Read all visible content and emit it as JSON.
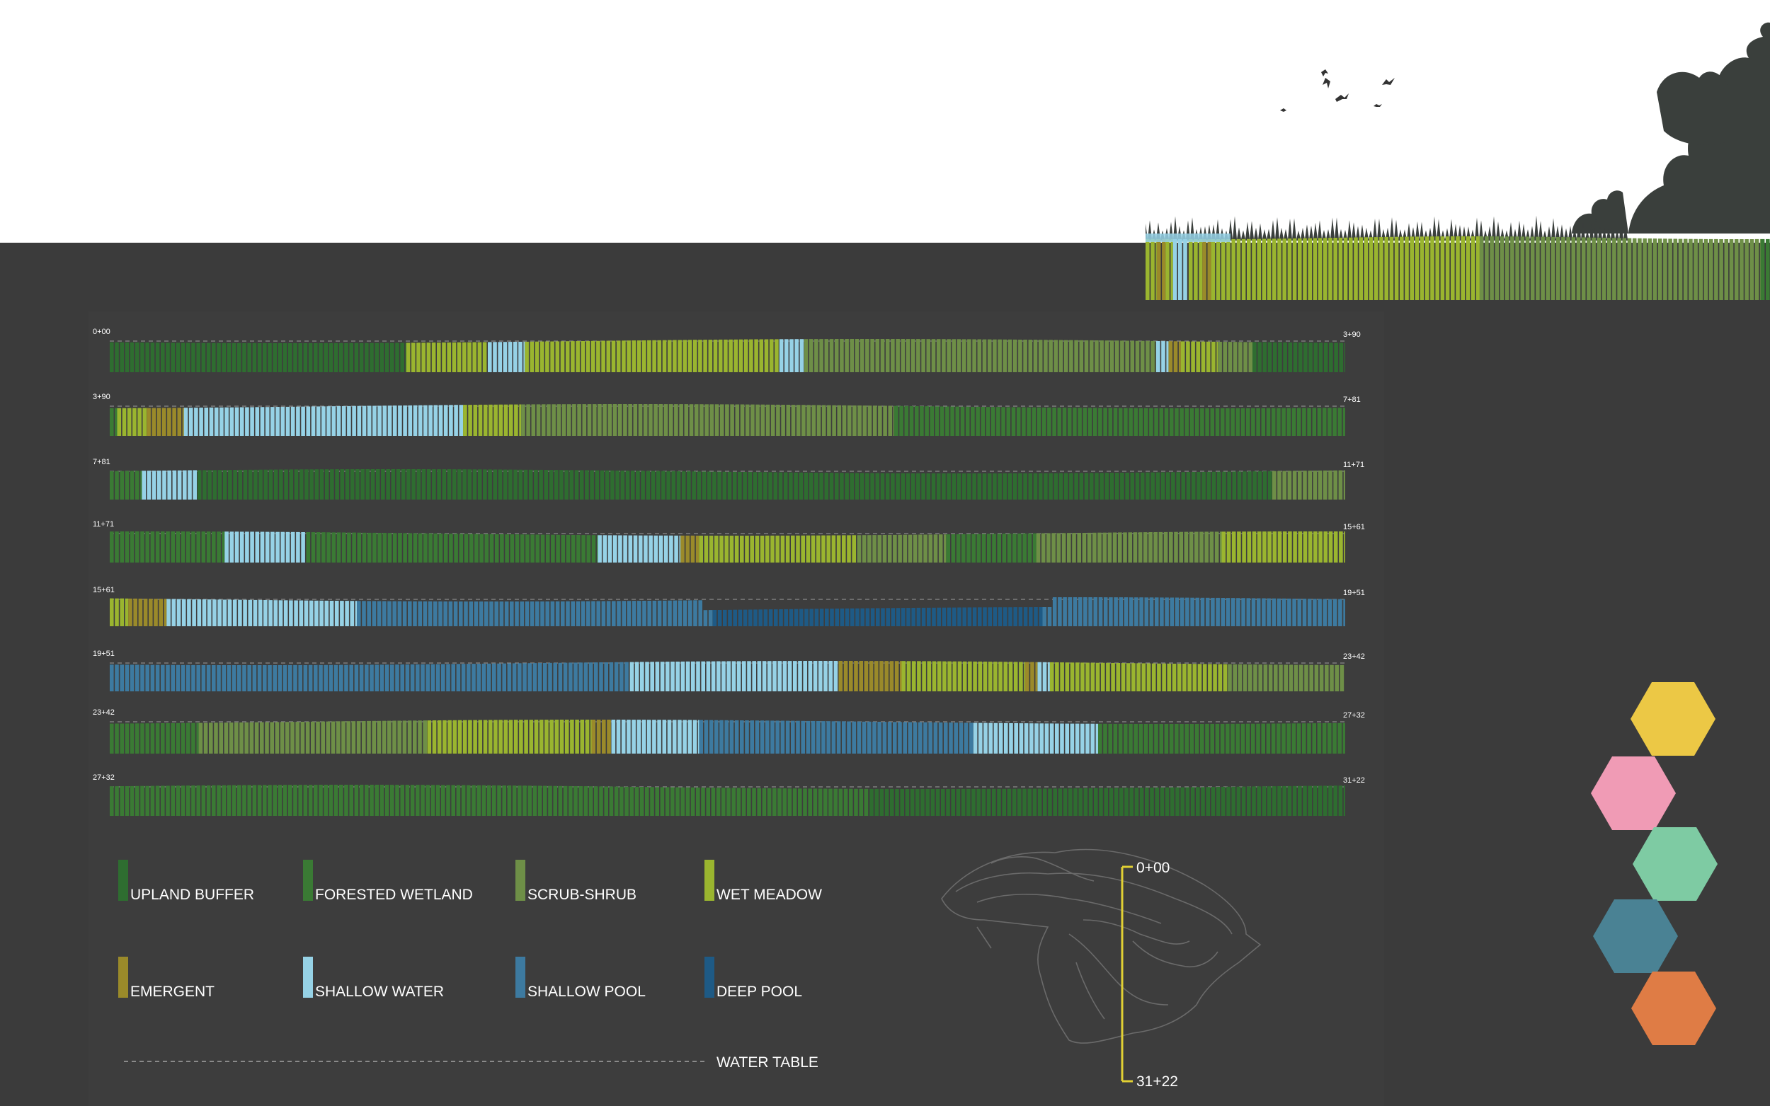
{
  "colors": {
    "upland_buffer": "#2e6d30",
    "forested_wetland": "#3a7a34",
    "scrub_shrub": "#6e8f47",
    "wet_meadow": "#9ab52f",
    "emergent": "#9a8a2a",
    "shallow_water": "#96d2e6",
    "shallow_pool": "#3d7aa0",
    "deep_pool": "#1e5a85",
    "hex_yellow": "#ecc845",
    "hex_pink": "#f09bb5",
    "hex_green": "#7ecba3",
    "hex_teal": "#4a8294",
    "hex_orange": "#df7c45"
  },
  "chart_data": {
    "type": "stacked-transect-bands",
    "rows": [
      {
        "start": "0+00",
        "end": "3+90",
        "segments": [
          [
            "upland_buffer",
            0.24
          ],
          [
            "wet_meadow",
            0.066
          ],
          [
            "shallow_water",
            0.03
          ],
          [
            "wet_meadow",
            0.206
          ],
          [
            "shallow_water",
            0.02
          ],
          [
            "scrub_shrub",
            0.285
          ],
          [
            "shallow_water",
            0.01
          ],
          [
            "emergent",
            0.01
          ],
          [
            "wet_meadow",
            0.03
          ],
          [
            "scrub_shrub",
            0.028
          ],
          [
            "upland_buffer",
            0.075
          ]
        ]
      },
      {
        "start": "3+90",
        "end": "7+81",
        "segments": [
          [
            "forested_wetland",
            0.006
          ],
          [
            "wet_meadow",
            0.024
          ],
          [
            "emergent",
            0.03
          ],
          [
            "shallow_water",
            0.226
          ],
          [
            "wet_meadow",
            0.047
          ],
          [
            "scrub_shrub",
            0.302
          ],
          [
            "forested_wetland",
            0.365
          ]
        ]
      },
      {
        "start": "7+81",
        "end": "11+71",
        "segments": [
          [
            "forested_wetland",
            0.026
          ],
          [
            "shallow_water",
            0.045
          ],
          [
            "upland_buffer",
            0.87
          ],
          [
            "scrub_shrub",
            0.059
          ]
        ]
      },
      {
        "start": "11+71",
        "end": "15+61",
        "segments": [
          [
            "forested_wetland",
            0.093
          ],
          [
            "shallow_water",
            0.066
          ],
          [
            "forested_wetland",
            0.236
          ],
          [
            "shallow_water",
            0.067
          ],
          [
            "emergent",
            0.015
          ],
          [
            "wet_meadow",
            0.128
          ],
          [
            "scrub_shrub",
            0.072
          ],
          [
            "forested_wetland",
            0.073
          ],
          [
            "scrub_shrub",
            0.15
          ],
          [
            "wet_meadow",
            0.1
          ]
        ]
      },
      {
        "start": "15+61",
        "end": "19+51",
        "segments": [
          [
            "wet_meadow",
            0.015
          ],
          [
            "emergent",
            0.031
          ],
          [
            "shallow_water",
            0.154
          ],
          [
            "shallow_pool",
            0.288
          ],
          [
            "deep_pool",
            0.267
          ],
          [
            "shallow_pool",
            0.245
          ]
        ]
      },
      {
        "start": "19+51",
        "end": "23+42",
        "segments": [
          [
            "shallow_pool",
            0.421
          ],
          [
            "shallow_water",
            0.169
          ],
          [
            "emergent",
            0.051
          ],
          [
            "wet_meadow",
            0.1
          ],
          [
            "emergent",
            0.01
          ],
          [
            "shallow_water",
            0.01
          ],
          [
            "wet_meadow",
            0.144
          ],
          [
            "scrub_shrub",
            0.095
          ]
        ]
      },
      {
        "start": "23+42",
        "end": "27+32",
        "segments": [
          [
            "forested_wetland",
            0.072
          ],
          [
            "scrub_shrub",
            0.185
          ],
          [
            "wet_meadow",
            0.133
          ],
          [
            "emergent",
            0.016
          ],
          [
            "shallow_water",
            0.071
          ],
          [
            "shallow_pool",
            0.222
          ],
          [
            "shallow_water",
            0.101
          ],
          [
            "forested_wetland",
            0.2
          ]
        ]
      },
      {
        "start": "27+32",
        "end": "31+22",
        "segments": [
          [
            "forested_wetland",
            0.615
          ],
          [
            "upland_buffer",
            0.385
          ]
        ]
      }
    ],
    "legend": [
      {
        "key": "upland_buffer",
        "label": "UPLAND BUFFER"
      },
      {
        "key": "forested_wetland",
        "label": "FORESTED WETLAND"
      },
      {
        "key": "scrub_shrub",
        "label": "SCRUB-SHRUB"
      },
      {
        "key": "wet_meadow",
        "label": "WET MEADOW"
      },
      {
        "key": "emergent",
        "label": "EMERGENT"
      },
      {
        "key": "shallow_water",
        "label": "SHALLOW WATER"
      },
      {
        "key": "shallow_pool",
        "label": "SHALLOW POOL"
      },
      {
        "key": "deep_pool",
        "label": "DEEP POOL"
      }
    ],
    "water_table_label": "WATER TABLE",
    "station_start": "0+00",
    "station_end": "31+22"
  },
  "hero_strip": {
    "segments": [
      [
        "wet_meadow",
        0.018
      ],
      [
        "emergent",
        0.014
      ],
      [
        "wet_meadow",
        0.012
      ],
      [
        "shallow_water",
        0.025
      ],
      [
        "wet_meadow",
        0.022
      ],
      [
        "emergent",
        0.014
      ],
      [
        "wet_meadow",
        0.43
      ],
      [
        "scrub_shrub",
        0.45
      ],
      [
        "forested_wetland",
        0.015
      ]
    ]
  },
  "hexagons": [
    "hex_yellow",
    "hex_pink",
    "hex_green",
    "hex_teal",
    "hex_orange"
  ]
}
